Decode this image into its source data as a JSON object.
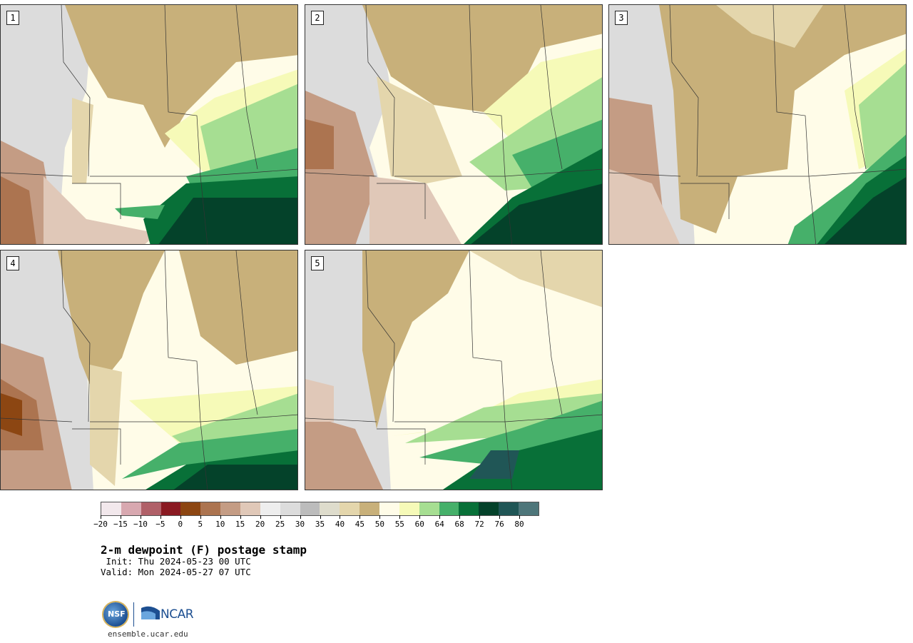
{
  "panels": [
    {
      "label": "1"
    },
    {
      "label": "2"
    },
    {
      "label": "3"
    },
    {
      "label": "4"
    },
    {
      "label": "5"
    }
  ],
  "colorbar": {
    "colors": [
      "#f2e8ec",
      "#d8a8b0",
      "#b06068",
      "#8a1a22",
      "#8c4612",
      "#ac7450",
      "#c49c84",
      "#e0c8b8",
      "#eeeeee",
      "#dcdcdc",
      "#bcbcbc",
      "#dedccc",
      "#e4d6ac",
      "#c8b07a",
      "#fffce8",
      "#f6fab8",
      "#a6de92",
      "#46b06a",
      "#087038",
      "#04422a",
      "#205656",
      "#4e767a"
    ],
    "ticks": [
      "−20",
      "−15",
      "−10",
      "−5",
      "0",
      "5",
      "10",
      "15",
      "20",
      "25",
      "30",
      "35",
      "40",
      "45",
      "50",
      "55",
      "60",
      "64",
      "68",
      "72",
      "76",
      "80"
    ]
  },
  "title": "2-m dewpoint (F) postage stamp",
  "init": " Init: Thu 2024-05-23 00 UTC",
  "valid": "Valid: Mon 2024-05-27 07 UTC",
  "logos": {
    "nsf": "NSF",
    "ncar": "NCAR"
  },
  "website": "ensemble.ucar.edu"
}
